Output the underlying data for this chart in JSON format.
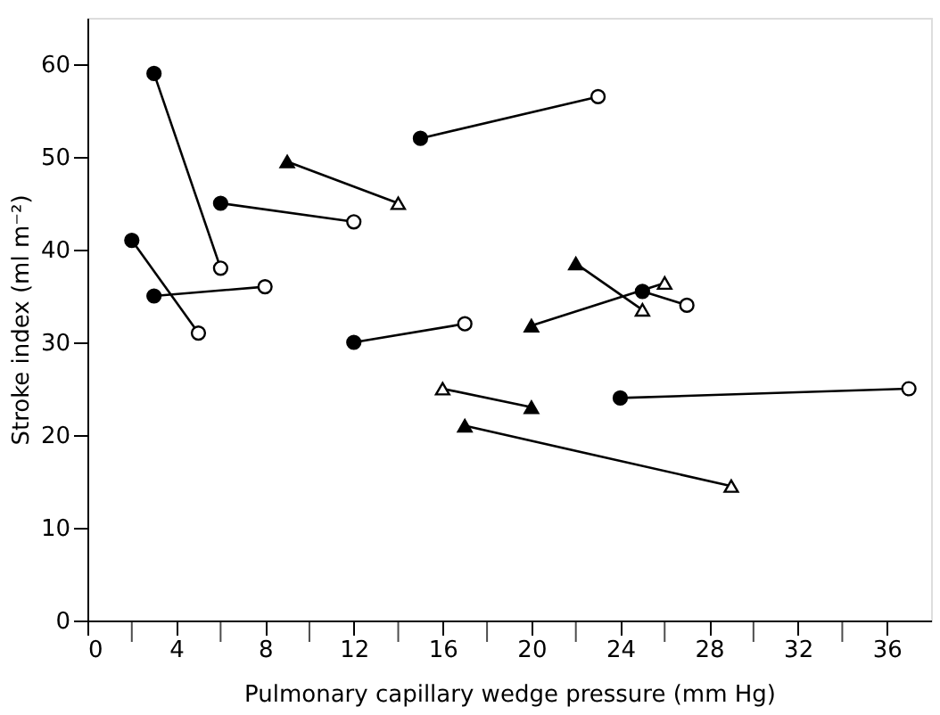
{
  "chart_data": {
    "type": "scatter",
    "xlabel": "Pulmonary capillary wedge pressure (mm Hg)",
    "ylabel": "Stroke index (ml m⁻²)",
    "xlim": [
      0,
      38
    ],
    "ylim": [
      0,
      65
    ],
    "xticks": [
      0,
      {
        "value": 2,
        "label": null
      },
      4,
      {
        "value": 6,
        "label": null
      },
      8,
      {
        "value": 10,
        "label": null
      },
      12,
      {
        "value": 14,
        "label": null
      },
      16,
      {
        "value": 18,
        "label": null
      },
      20,
      {
        "value": 22,
        "label": null
      },
      24,
      {
        "value": 26,
        "label": null
      },
      28,
      {
        "value": 30,
        "label": null
      },
      32,
      {
        "value": 34,
        "label": null
      },
      36
    ],
    "yticks": [
      0,
      10,
      20,
      30,
      40,
      50,
      60
    ],
    "grid": false,
    "series": [
      {
        "type": "line",
        "marker": "none",
        "color": "#000000",
        "x": [
          3,
          6
        ],
        "values": [
          59,
          38
        ]
      },
      {
        "type": "line",
        "marker": "none",
        "color": "#000000",
        "x": [
          2,
          5
        ],
        "values": [
          41,
          31
        ]
      },
      {
        "type": "line",
        "marker": "none",
        "color": "#000000",
        "x": [
          3,
          8
        ],
        "values": [
          35,
          36
        ]
      },
      {
        "type": "line",
        "marker": "none",
        "color": "#000000",
        "x": [
          6,
          12
        ],
        "values": [
          45,
          43
        ]
      },
      {
        "type": "line",
        "marker": "none",
        "color": "#000000",
        "x": [
          9,
          14
        ],
        "values": [
          49.5,
          45
        ]
      },
      {
        "type": "line",
        "marker": "none",
        "color": "#000000",
        "x": [
          15,
          23
        ],
        "values": [
          52,
          56.5
        ]
      },
      {
        "type": "line",
        "marker": "none",
        "color": "#000000",
        "x": [
          12,
          17
        ],
        "values": [
          30,
          32
        ]
      },
      {
        "type": "line",
        "marker": "none",
        "color": "#000000",
        "x": [
          16,
          20
        ],
        "values": [
          25,
          23
        ]
      },
      {
        "type": "line",
        "marker": "none",
        "color": "#000000",
        "x": [
          17,
          29
        ],
        "values": [
          21,
          14.5
        ]
      },
      {
        "type": "line",
        "marker": "none",
        "color": "#000000",
        "x": [
          24,
          37
        ],
        "values": [
          24,
          25
        ]
      },
      {
        "type": "line",
        "marker": "none",
        "color": "#000000",
        "x": [
          22,
          25
        ],
        "values": [
          38.5,
          33.5
        ]
      },
      {
        "type": "line",
        "marker": "none",
        "color": "#000000",
        "x": [
          20,
          26
        ],
        "values": [
          31.8,
          36.4
        ]
      },
      {
        "type": "line",
        "marker": "none",
        "color": "#000000",
        "x": [
          25,
          27
        ],
        "values": [
          35.5,
          34
        ]
      },
      {
        "marker": "circle",
        "color": "#000000",
        "x": [
          3,
          2,
          3,
          6,
          15,
          12,
          24,
          25
        ],
        "values": [
          59,
          41,
          35,
          45,
          52,
          30,
          24,
          35.5
        ]
      },
      {
        "marker": "circle",
        "color": "#ffffff",
        "x": [
          6,
          5,
          8,
          12,
          23,
          17,
          37,
          27
        ],
        "values": [
          38,
          31,
          36,
          43,
          56.5,
          32,
          25,
          34
        ]
      },
      {
        "marker": "triangle",
        "color": "#000000",
        "x": [
          9,
          20,
          17,
          22,
          20
        ],
        "values": [
          49.5,
          23,
          21,
          38.5,
          31.8
        ]
      },
      {
        "marker": "triangle",
        "color": "#ffffff",
        "x": [
          14,
          16,
          29,
          25,
          26
        ],
        "values": [
          45,
          25,
          14.5,
          33.5,
          36.4
        ]
      }
    ]
  }
}
